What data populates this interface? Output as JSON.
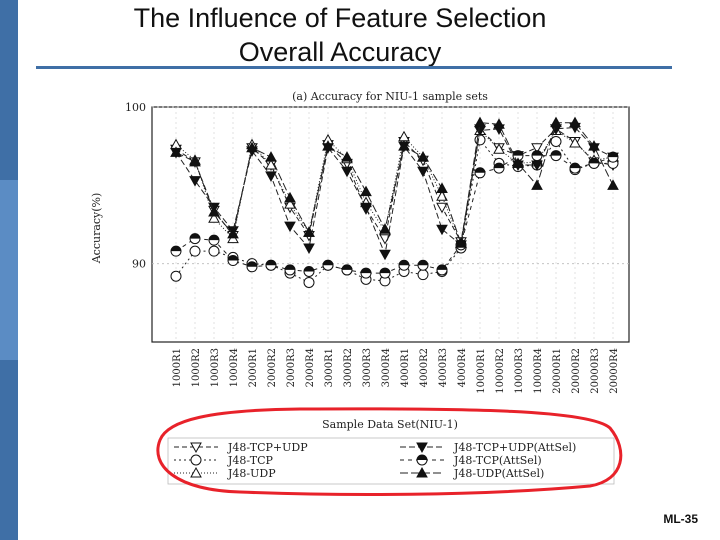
{
  "slide": {
    "title_line1": "The Influence of Feature Selection",
    "title_line2": "Overall Accuracy",
    "page_number": "ML-35",
    "accent_color": "#3f6fa6",
    "annotation_color": "#e8222a"
  },
  "chart_data": {
    "type": "line",
    "title": "(a) Accuracy for NIU-1 sample sets",
    "xlabel": "Sample Data Set(NIU-1)",
    "ylabel": "Accuracy(%)",
    "ylim": [
      85,
      100
    ],
    "yticks": [
      90,
      100
    ],
    "grid": true,
    "legend_position": "bottom",
    "categories": [
      "1000R1",
      "1000R2",
      "1000R3",
      "1000R4",
      "2000R1",
      "2000R2",
      "2000R3",
      "2000R4",
      "3000R1",
      "3000R2",
      "3000R3",
      "3000R4",
      "4000R1",
      "4000R2",
      "4000R3",
      "4000R4",
      "10000R1",
      "10000R2",
      "10000R3",
      "10000R4",
      "20000R1",
      "20000R2",
      "20000R3",
      "20000R4"
    ],
    "series": [
      {
        "name": "J48-TCP+UDP",
        "marker": "triangle-down-open",
        "dash": "5,3",
        "values": [
          97.3,
          96.5,
          93.4,
          91.8,
          97.4,
          96.3,
          93.6,
          91.8,
          97.6,
          96.4,
          93.5,
          91.6,
          97.8,
          96.6,
          93.6,
          91.4,
          98.6,
          97.4,
          96.9,
          97.4,
          98.6,
          97.8,
          96.5,
          96.3
        ]
      },
      {
        "name": "J48-TCP",
        "marker": "circle-open",
        "dash": "2,3",
        "values": [
          89.2,
          90.8,
          90.8,
          90.4,
          90.0,
          89.9,
          89.4,
          88.8,
          89.9,
          89.6,
          89.0,
          88.9,
          89.5,
          89.3,
          89.5,
          91.0,
          97.9,
          96.4,
          96.2,
          96.3,
          97.8,
          96.0,
          96.4,
          96.4
        ]
      },
      {
        "name": "J48-UDP",
        "marker": "triangle-up-open",
        "dash": "1,2",
        "values": [
          97.6,
          96.6,
          92.9,
          91.6,
          97.6,
          96.3,
          93.8,
          92.0,
          97.9,
          96.7,
          93.9,
          92.1,
          98.1,
          96.8,
          94.3,
          91.3,
          98.5,
          97.3,
          96.4,
          96.5,
          98.5,
          97.7,
          96.6,
          96.8
        ]
      },
      {
        "name": "J48-TCP+UDP(AttSel)",
        "marker": "triangle-down-filled",
        "dash": "6,3",
        "values": [
          97.1,
          95.3,
          93.6,
          92.1,
          97.2,
          95.6,
          92.4,
          91.0,
          97.4,
          95.9,
          93.6,
          90.6,
          97.5,
          95.9,
          92.2,
          91.2,
          98.5,
          98.6,
          96.3,
          96.3,
          98.6,
          98.7,
          97.4,
          96.8
        ]
      },
      {
        "name": "J48-TCP(AttSel)",
        "marker": "circle-half",
        "dash": "4,4",
        "values": [
          90.8,
          91.6,
          91.5,
          90.2,
          89.8,
          89.9,
          89.6,
          89.5,
          89.9,
          89.6,
          89.4,
          89.4,
          89.9,
          89.9,
          89.6,
          91.2,
          95.8,
          96.1,
          96.9,
          96.9,
          96.9,
          96.1,
          96.4,
          96.8
        ]
      },
      {
        "name": "J48-UDP(AttSel)",
        "marker": "triangle-up-filled",
        "dash": "8,3",
        "values": [
          97.1,
          96.5,
          93.3,
          91.9,
          97.4,
          96.8,
          94.2,
          92.0,
          97.5,
          96.8,
          94.6,
          92.2,
          97.5,
          96.8,
          94.8,
          91.3,
          99.0,
          98.9,
          96.4,
          95.0,
          99.0,
          99.0,
          97.5,
          95.0
        ]
      }
    ]
  }
}
